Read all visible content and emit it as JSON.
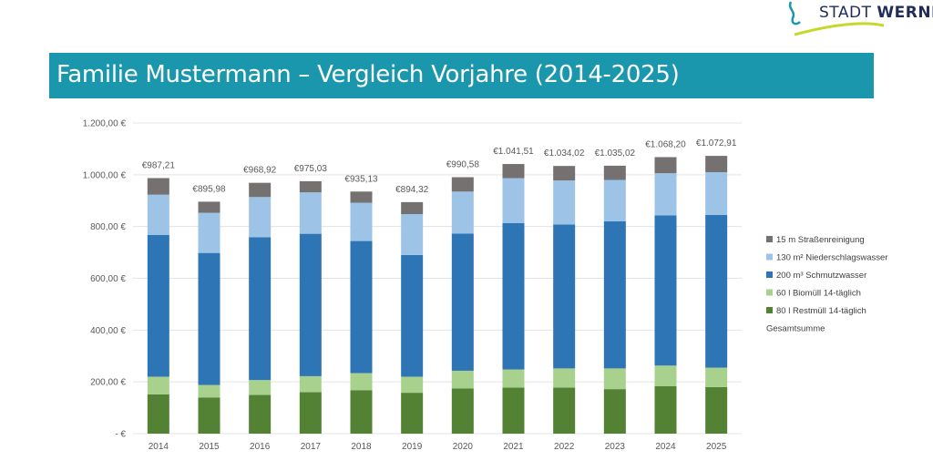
{
  "logo": {
    "text_light": "STADT",
    "text_bold": "WERNE"
  },
  "title": "Familie Mustermann – Vergleich Vorjahre (2014-2025)",
  "chart_data": {
    "type": "bar",
    "stacked": true,
    "categories": [
      "2014",
      "2015",
      "2016",
      "2017",
      "2018",
      "2019",
      "2020",
      "2021",
      "2022",
      "2023",
      "2024",
      "2025"
    ],
    "ylim": [
      0,
      1200
    ],
    "yticks": [
      0,
      200,
      400,
      600,
      800,
      1000,
      1200
    ],
    "ytick_labels": [
      "-  €",
      "200,00 €",
      "400,00 €",
      "600,00 €",
      "800,00 €",
      "1.000,00 €",
      "1.200,00 €"
    ],
    "grid": true,
    "legend_position": "right",
    "series": [
      {
        "name": "80 l Restmüll 14-täglich",
        "color": "#548235",
        "values": [
          152,
          140,
          150,
          160,
          168,
          158,
          175,
          178,
          178,
          172,
          183,
          180
        ]
      },
      {
        "name": "60 l Biomüll 14-täglich",
        "color": "#a9d18e",
        "values": [
          68,
          48,
          57,
          62,
          66,
          62,
          68,
          70,
          74,
          80,
          80,
          75
        ]
      },
      {
        "name": "200 m³ Schmutzwasser",
        "color": "#2e75b6",
        "values": [
          548,
          510,
          552,
          550,
          510,
          470,
          530,
          565,
          556,
          568,
          580,
          590
        ]
      },
      {
        "name": "130 m² Niederschlagswasser",
        "color": "#9dc3e6",
        "values": [
          155,
          155,
          155,
          160,
          148,
          158,
          162,
          174,
          170,
          160,
          163,
          165
        ]
      },
      {
        "name": "15 m Straßenreinigung",
        "color": "#767171",
        "values": [
          64.21,
          42.98,
          54.92,
          43.03,
          43.13,
          46.32,
          55.58,
          54.51,
          56.02,
          55.02,
          62.2,
          62.91
        ]
      }
    ],
    "totals": {
      "name": "Gesamtsumme",
      "values": [
        987.21,
        895.98,
        968.92,
        975.03,
        935.13,
        894.32,
        990.58,
        1041.51,
        1034.02,
        1035.02,
        1068.2,
        1072.91
      ],
      "labels": [
        "€987,21",
        "€895,98",
        "€968,92",
        "€975,03",
        "€935,13",
        "€894,32",
        "€990,58",
        "€1.041,51",
        "€1.034,02",
        "€1.035,02",
        "€1.068,20",
        "€1.072,91"
      ]
    },
    "legend_order": [
      "15 m Straßenreinigung",
      "130 m² Niederschlagswasser",
      "200 m³ Schmutzwasser",
      "60 l Biomüll 14-täglich",
      "80 l Restmüll 14-täglich",
      "Gesamtsumme"
    ]
  }
}
